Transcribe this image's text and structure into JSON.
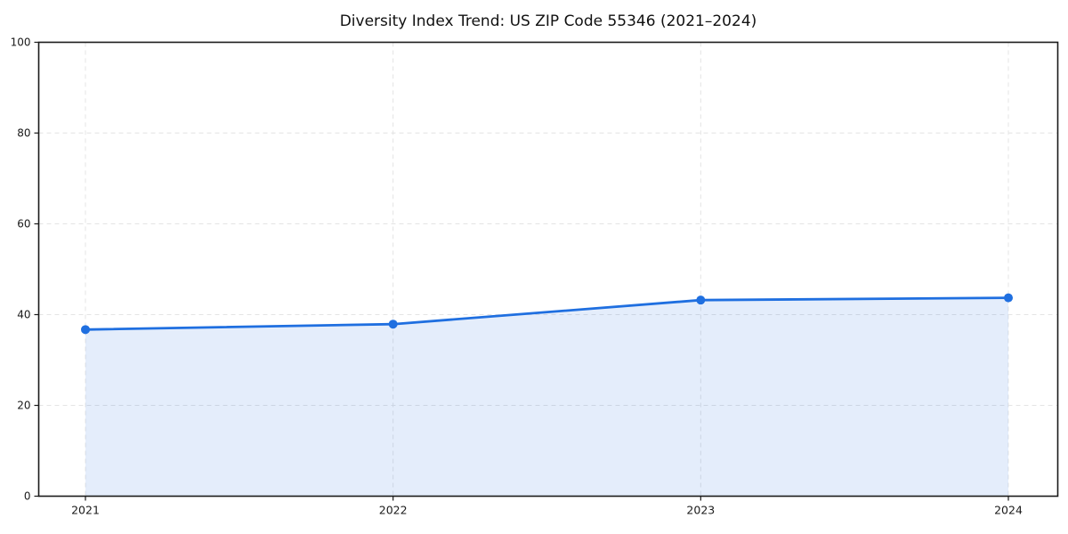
{
  "chart_data": {
    "type": "line",
    "title": "Diversity Index Trend: US ZIP Code 55346 (2021–2024)",
    "categories": [
      "2021",
      "2022",
      "2023",
      "2024"
    ],
    "series": [
      {
        "name": "Diversity Index",
        "values": [
          36.7,
          37.9,
          43.2,
          43.7
        ]
      }
    ],
    "xlabel": "",
    "ylabel": "",
    "ylim": [
      0,
      100
    ],
    "yticks": [
      0,
      20,
      40,
      60,
      80,
      100
    ],
    "grid": {
      "style": "dashed",
      "horizontal": true,
      "vertical": true
    },
    "legend": "none",
    "area_fill": true,
    "markers": true,
    "colors": {
      "line": "#1f6fe0",
      "area_fill": "rgba(31,111,224,0.12)",
      "grid": "#e4e4e4",
      "spine": "#1a1a1a",
      "tick": "#1a1a1a",
      "text": "#1a1a1a",
      "background": "#ffffff"
    }
  }
}
